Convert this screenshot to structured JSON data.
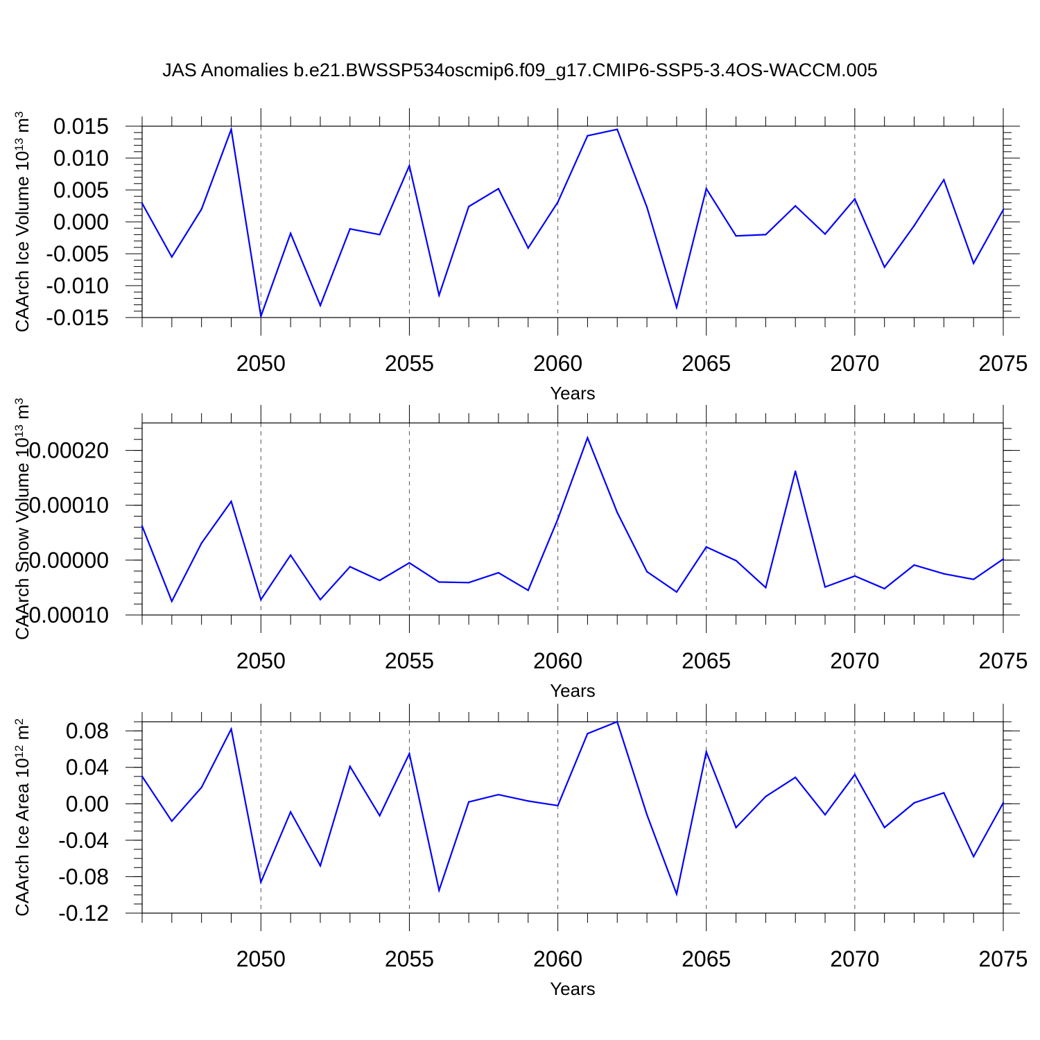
{
  "figure": {
    "title": "JAS Anomalies b.e21.BWSSP534oscmip6.f09_g17.CMIP6-SSP5-3.4OS-WACCM.005"
  },
  "colors": {
    "line": "#0000ff",
    "axis": "#000000",
    "grid": "#555555",
    "background": "#ffffff"
  },
  "chart_data": [
    {
      "type": "line",
      "name": "CAArch Ice Volume",
      "ylabel": {
        "base": "CAArch Ice Volume 10",
        "exp": "13",
        "unit": " m",
        "unit_exp": "3"
      },
      "xlabel": "Years",
      "xlim": [
        2046,
        2075
      ],
      "ylim": [
        -0.015,
        0.015
      ],
      "x_ticks": [
        2050,
        2055,
        2060,
        2065,
        2070,
        2075
      ],
      "x_tick_labels": [
        "2050",
        "2055",
        "2060",
        "2065",
        "2070",
        "2075"
      ],
      "y_ticks": [
        -0.015,
        -0.01,
        -0.005,
        0,
        0.005,
        0.01,
        0.015
      ],
      "y_tick_labels": [
        "-0.015",
        "-0.010",
        "-0.005",
        "0.000",
        "0.005",
        "0.010",
        "0.015"
      ],
      "y_minor_step": 0.001,
      "grid": "x dashed",
      "x": [
        2046,
        2047,
        2048,
        2049,
        2050,
        2051,
        2052,
        2053,
        2054,
        2055,
        2056,
        2057,
        2058,
        2059,
        2060,
        2061,
        2062,
        2063,
        2064,
        2065,
        2066,
        2067,
        2068,
        2069,
        2070,
        2071,
        2072,
        2073,
        2074,
        2075
      ],
      "values": [
        0.0029,
        -0.0055,
        0.002,
        0.0145,
        -0.0148,
        -0.0018,
        -0.0131,
        -0.0011,
        -0.002,
        0.0088,
        -0.0115,
        0.0024,
        0.0052,
        -0.0041,
        0.0031,
        0.0135,
        0.0145,
        0.0023,
        -0.0134,
        0.0052,
        -0.0022,
        -0.002,
        0.0025,
        -0.0019,
        0.0036,
        -0.0071,
        -0.0006,
        0.0066,
        -0.0065,
        0.0019
      ]
    },
    {
      "type": "line",
      "name": "CAArch Snow Volume",
      "ylabel": {
        "base": "CAArch Snow Volume 10",
        "exp": "13",
        "unit": " m",
        "unit_exp": "3"
      },
      "xlabel": "Years",
      "xlim": [
        2046,
        2075
      ],
      "ylim": [
        -0.0001,
        0.00025
      ],
      "x_ticks": [
        2050,
        2055,
        2060,
        2065,
        2070,
        2075
      ],
      "x_tick_labels": [
        "2050",
        "2055",
        "2060",
        "2065",
        "2070",
        "2075"
      ],
      "y_ticks": [
        -0.0001,
        0,
        0.0001,
        0.0002
      ],
      "y_tick_labels": [
        "-0.00010",
        "0.00000",
        "0.00010",
        "0.00020"
      ],
      "y_minor_step": 2e-05,
      "grid": "x dashed",
      "x": [
        2046,
        2047,
        2048,
        2049,
        2050,
        2051,
        2052,
        2053,
        2054,
        2055,
        2056,
        2057,
        2058,
        2059,
        2060,
        2061,
        2062,
        2063,
        2064,
        2065,
        2066,
        2067,
        2068,
        2069,
        2070,
        2071,
        2072,
        2073,
        2074,
        2075
      ],
      "values": [
        6.2e-05,
        -7.5e-05,
        3.1e-05,
        0.000107,
        -7.2e-05,
        9e-06,
        -7.2e-05,
        -1.2e-05,
        -3.7e-05,
        -5e-06,
        -4e-05,
        -4.1e-05,
        -2.3e-05,
        -5.5e-05,
        7.5e-05,
        0.000223,
        8.7e-05,
        -2.1e-05,
        -5.8e-05,
        2.4e-05,
        -1e-06,
        -5e-05,
        0.000162,
        -4.9e-05,
        -2.9e-05,
        -5.2e-05,
        -9e-06,
        -2.5e-05,
        -3.5e-05,
        2e-06
      ]
    },
    {
      "type": "line",
      "name": "CAArch Ice Area",
      "ylabel": {
        "base": "CAArch Ice Area 10",
        "exp": "12",
        "unit": " m",
        "unit_exp": "2"
      },
      "xlabel": "Years",
      "xlim": [
        2046,
        2075
      ],
      "ylim": [
        -0.12,
        0.09
      ],
      "x_ticks": [
        2050,
        2055,
        2060,
        2065,
        2070,
        2075
      ],
      "x_tick_labels": [
        "2050",
        "2055",
        "2060",
        "2065",
        "2070",
        "2075"
      ],
      "y_ticks": [
        -0.12,
        -0.08,
        -0.04,
        0,
        0.04,
        0.08
      ],
      "y_tick_labels": [
        "-0.12",
        "-0.08",
        "-0.04",
        "0.00",
        "0.04",
        "0.08"
      ],
      "y_minor_step": 0.01,
      "grid": "x dashed",
      "x": [
        2046,
        2047,
        2048,
        2049,
        2050,
        2051,
        2052,
        2053,
        2054,
        2055,
        2056,
        2057,
        2058,
        2059,
        2060,
        2061,
        2062,
        2063,
        2064,
        2065,
        2066,
        2067,
        2068,
        2069,
        2070,
        2071,
        2072,
        2073,
        2074,
        2075
      ],
      "values": [
        0.03,
        -0.019,
        0.018,
        0.082,
        -0.086,
        -0.009,
        -0.068,
        0.041,
        -0.013,
        0.055,
        -0.095,
        0.002,
        0.01,
        0.003,
        -0.002,
        0.077,
        0.09,
        -0.012,
        -0.099,
        0.057,
        -0.026,
        0.008,
        0.029,
        -0.012,
        0.032,
        -0.026,
        0.001,
        0.012,
        -0.058,
        0.001
      ]
    }
  ]
}
